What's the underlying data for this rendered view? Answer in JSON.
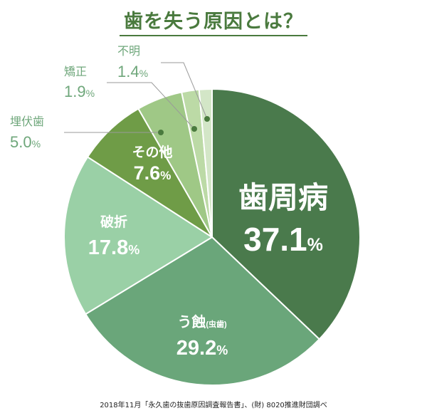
{
  "title": "歯を失う原因とは？",
  "source": "2018年11月「永久歯の抜歯原因調査報告書」、(財) 8020推進財団調べ",
  "colors": {
    "title": "#4a7a3e",
    "inside_label": "#ffffff",
    "outside_label": "#6fa77b",
    "leader": "#9a9a9a",
    "leader_dot": "#4a7a3e"
  },
  "chart_data": {
    "type": "pie",
    "unit": "%",
    "slices": [
      {
        "label": "歯周病",
        "value": 37.1,
        "value_text": "37.1",
        "color": "#4a7a4c"
      },
      {
        "label": "う蝕",
        "sub": "(虫歯)",
        "value": 29.2,
        "value_text": "29.2",
        "color": "#6aa67a"
      },
      {
        "label": "破折",
        "value": 17.8,
        "value_text": "17.8",
        "color": "#9ad0a6"
      },
      {
        "label": "その他",
        "value": 7.6,
        "value_text": "7.6",
        "color": "#6f9c47"
      },
      {
        "label": "埋伏歯",
        "value": 5.0,
        "value_text": "5.0",
        "color": "#9fc886"
      },
      {
        "label": "矯正",
        "value": 1.9,
        "value_text": "1.9",
        "color": "#bcdaa6"
      },
      {
        "label": "不明",
        "value": 1.4,
        "value_text": "1.4",
        "color": "#d3e6c7"
      }
    ]
  }
}
